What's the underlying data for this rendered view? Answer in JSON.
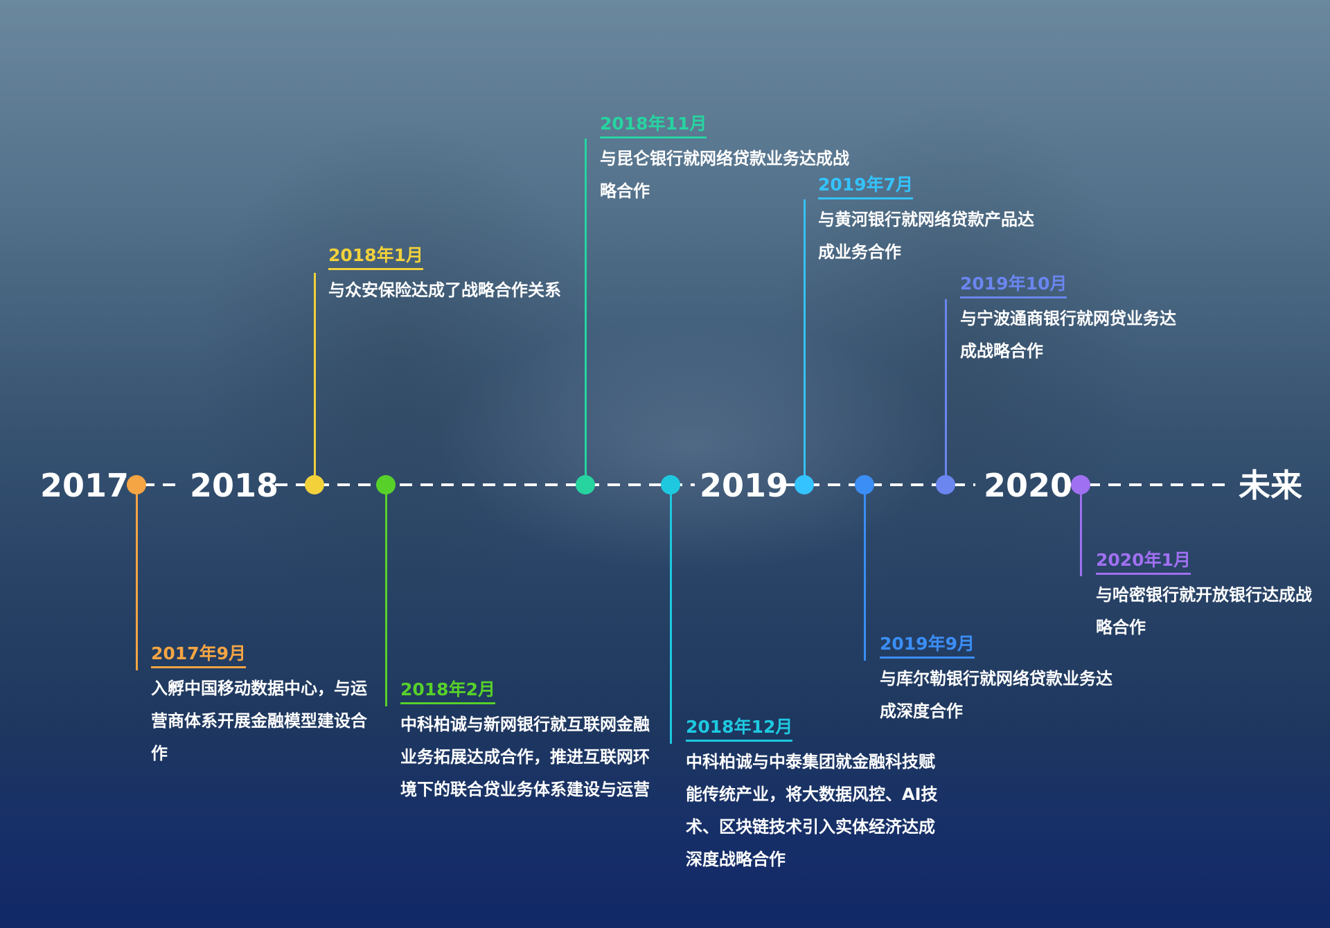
{
  "timeline": {
    "years": [
      "2017",
      "2018",
      "2019",
      "2020",
      "未来"
    ],
    "events": [
      {
        "date": "2017年9月",
        "desc": "入孵中国移动数据中心，与运营商体系开展金融模型建设合作",
        "color": "#f5a544"
      },
      {
        "date": "2018年1月",
        "desc": "与众安保险达成了战略合作关系",
        "color": "#f2d13b"
      },
      {
        "date": "2018年2月",
        "desc": "中科柏诚与新网银行就互联网金融业务拓展达成合作，推进互联网环境下的联合贷业务体系建设与运营",
        "color": "#57d12a"
      },
      {
        "date": "2018年11月",
        "desc": "与昆仑银行就网络贷款业务达成战略合作",
        "color": "#27d4a0"
      },
      {
        "date": "2018年12月",
        "desc": "中科柏诚与中泰集团就金融科技赋能传统产业，将大数据风控、AI技术、区块链技术引入实体经济达成深度战略合作",
        "color": "#1ec9e0"
      },
      {
        "date": "2019年7月",
        "desc": "与黄河银行就网络贷款产品达成业务合作",
        "color": "#34c3ff"
      },
      {
        "date": "2019年9月",
        "desc": "与库尔勒银行就网络贷款业务达成深度合作",
        "color": "#3b8ef5"
      },
      {
        "date": "2019年10月",
        "desc": "与宁波通商银行就网贷业务达成战略合作",
        "color": "#6b86ef"
      },
      {
        "date": "2020年1月",
        "desc": "与哈密银行就开放银行达成战略合作",
        "color": "#a070f2"
      }
    ]
  }
}
